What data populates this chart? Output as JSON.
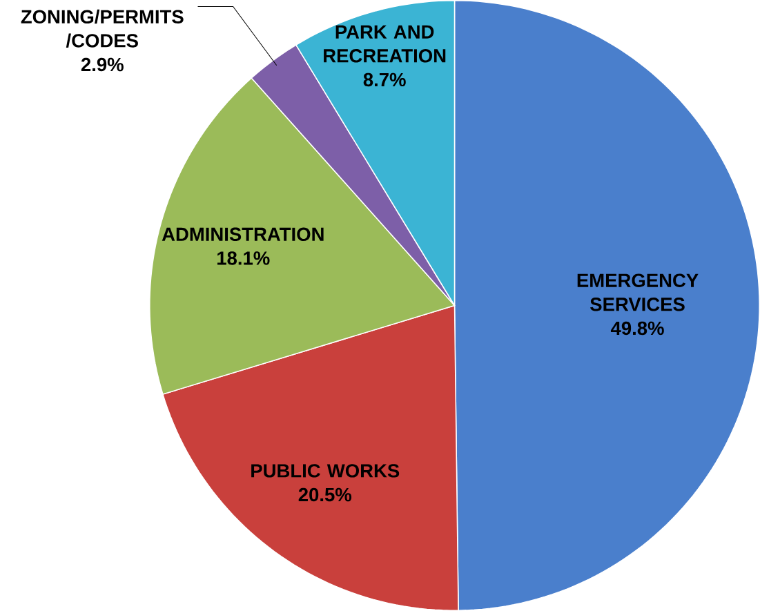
{
  "chart_data": {
    "type": "pie",
    "categories": [
      "EMERGENCY SERVICES",
      "PUBLIC WORKS",
      "ADMINISTRATION",
      "ZONING/PERMITS /CODES",
      "PARK AND RECREATION"
    ],
    "values": [
      49.8,
      20.5,
      18.1,
      2.9,
      8.7
    ],
    "value_labels": [
      "49.8%",
      "20.5%",
      "18.1%",
      "2.9%",
      "8.7%"
    ],
    "colors": [
      "#4a7fcc",
      "#c9403c",
      "#9bbb59",
      "#7d5fa8",
      "#3bb4d4"
    ]
  }
}
